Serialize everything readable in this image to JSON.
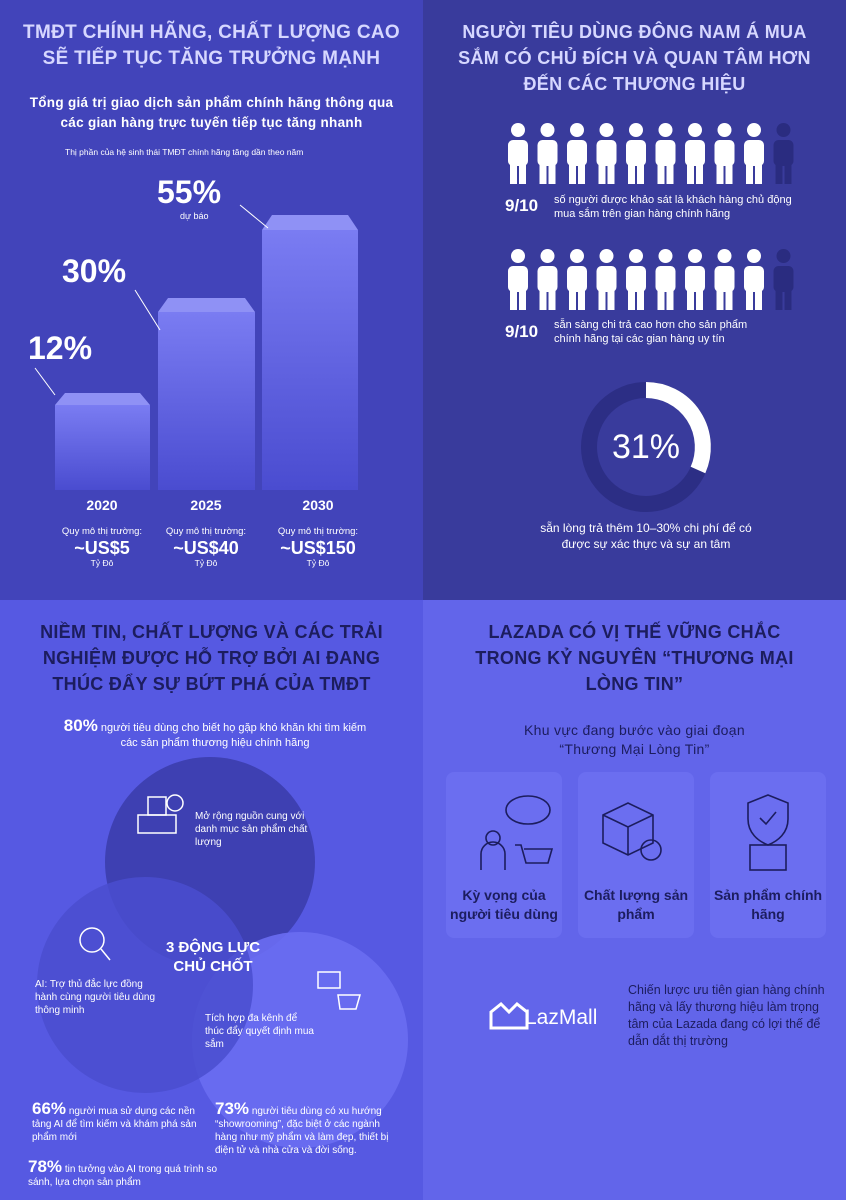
{
  "growth": {
    "title": [
      "TMĐT CHÍNH HÃNG, CHẤT LƯỢNG CAO",
      "SẼ TIẾP TỤC TĂNG TRƯỞNG MẠNH"
    ],
    "subtitle": [
      "Tổng giá trị giao dịch sản phẩm chính hãng thông qua",
      "các gian hàng trực tuyến tiếp tục tăng nhanh"
    ],
    "note": "Thị phần của hệ sinh thái TMĐT chính hãng tăng dần theo năm",
    "forecast": "dự báo",
    "bars": [
      {
        "share": "12%",
        "year": "2020",
        "market_label": "Quy mô thị trường:",
        "market": "~US$5",
        "unit": "Tỷ Đô"
      },
      {
        "share": "30%",
        "year": "2025",
        "market_label": "Quy mô thị trường:",
        "market": "~US$40",
        "unit": "Tỷ Đô"
      },
      {
        "share": "55%",
        "year": "2030",
        "market_label": "Quy mô thị trường:",
        "market": "~US$150",
        "unit": "Tỷ Đô"
      }
    ]
  },
  "consumers": {
    "title": [
      "NGƯỜI TIÊU DÙNG ĐÔNG NAM Á MUA",
      "SẮM CÓ CHỦ ĐÍCH VÀ QUAN TÂM HƠN",
      "ĐẾN CÁC THƯƠNG HIỆU"
    ],
    "facts": [
      {
        "ratio": "9/10",
        "text": "số người được khảo sát là khách hàng chủ động mua sắm trên gian hàng chính hãng"
      },
      {
        "ratio": "9/10",
        "text": "sẵn sàng chi trả cao hơn cho sản phẩm chính hãng tại các gian hàng uy tín"
      }
    ],
    "ring": {
      "value": "31%",
      "text": "sẵn lòng trả thêm 10–30% chi phí để có được sự xác thực và sự an tâm"
    }
  },
  "drivers": {
    "title": [
      "NIỀM TIN, CHẤT LƯỢNG VÀ CÁC TRẢI",
      "NGHIỆM ĐƯỢC HỖ TRỢ BỞI AI ĐANG",
      "THÚC ĐẨY SỰ BỨT PHÁ CỦA TMĐT"
    ],
    "intro": {
      "pct": "80%",
      "text": "người tiêu dùng cho biết họ gặp khó khăn khi tìm kiếm các sản phẩm thương hiệu chính hãng"
    },
    "circles": [
      "Mở rộng nguồn cung với danh mục sản phẩm chất lượng",
      "AI: Trợ thủ đắc lực đồng hành cùng người tiêu dùng thông minh",
      "Tích hợp đa kênh để thúc đẩy quyết định mua sắm"
    ],
    "center": "3 ĐỘNG LỰC CHỦ CHỐT",
    "stats": [
      {
        "pct": "66%",
        "text": "người mua sử dụng các nền tảng AI để tìm kiếm và khám phá sản phẩm mới"
      },
      {
        "pct": "73%",
        "text": "người tiêu dùng có xu hướng “showrooming”, đặc biệt ở các ngành hàng như mỹ phẩm và làm đẹp, thiết bị điện tử và nhà cửa và đời sống."
      },
      {
        "pct": "78%",
        "text": "tin tưởng vào AI trong quá trình so sánh, lựa chọn sản phẩm"
      }
    ]
  },
  "lazada": {
    "title": [
      "LAZADA CÓ VỊ THẾ VỮNG CHẮC",
      "TRONG KỶ NGUYÊN “THƯƠNG MẠI",
      "LÒNG TIN”"
    ],
    "subtitle": [
      "Khu vực đang bước vào giai đoạn",
      "“Thương Mại Lòng Tin”"
    ],
    "cards": [
      "Kỳ vọng của người tiêu dùng",
      "Chất lượng sản phẩm",
      "Sản phẩm chính hãng"
    ],
    "brand": "LazMall",
    "text": "Chiến lược ưu tiên gian hàng chính hãng và lấy thương hiệu làm trọng tâm của Lazada đang có lợi thế để dẫn dắt thị trường"
  }
}
